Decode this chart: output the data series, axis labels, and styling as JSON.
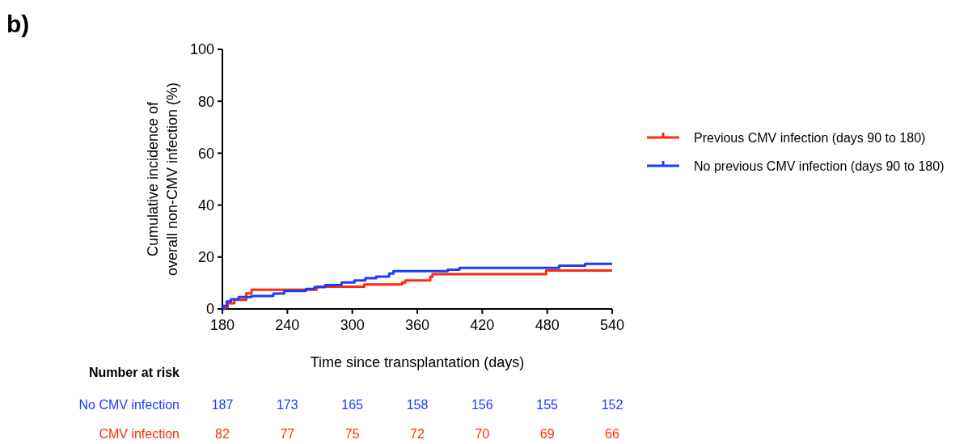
{
  "chart_data": {
    "type": "step",
    "title": "b)",
    "xlabel": "Time since transplantation (days)",
    "ylabel": "Cumulative incidence of\noverall non-CMV infection (%)",
    "xlim": [
      180,
      540
    ],
    "xticks": [
      180,
      240,
      300,
      360,
      420,
      480,
      540
    ],
    "ylim": [
      0,
      100
    ],
    "yticks": [
      0,
      20,
      40,
      60,
      80,
      100
    ],
    "legend": "right",
    "grid": false,
    "series": [
      {
        "name": "Previous CMV infection (days 90 to 180)",
        "color": "#ff2a0a",
        "x": [
          180,
          182,
          185,
          191,
          202,
          207,
          267,
          311,
          346,
          349,
          372,
          374,
          479,
          540
        ],
        "values": [
          0,
          0.6,
          2.2,
          3.5,
          6,
          7.4,
          8.6,
          9.4,
          10.2,
          11,
          12.4,
          13.4,
          14.8,
          14.8
        ]
      },
      {
        "name": "No previous CMV infection (days 90 to 180)",
        "color": "#1a3cff",
        "x": [
          180,
          181,
          184,
          188,
          195,
          207,
          227,
          237,
          257,
          265,
          275,
          290,
          302,
          312,
          322,
          334,
          338,
          388,
          399,
          491,
          515,
          540
        ],
        "values": [
          0,
          1.2,
          2.9,
          3.7,
          4.6,
          5,
          5.9,
          6.9,
          7.7,
          8.4,
          9.2,
          10.2,
          11,
          11.8,
          12.5,
          13.6,
          14.6,
          15.1,
          15.8,
          16.7,
          17.4,
          17.4
        ]
      }
    ],
    "annotations": [
      "Number at risk",
      "No CMV infection",
      "187",
      "173",
      "165",
      "158",
      "156",
      "155",
      "152",
      "CMV infection",
      "82",
      "77",
      "75",
      "72",
      "70",
      "69",
      "66"
    ]
  }
}
